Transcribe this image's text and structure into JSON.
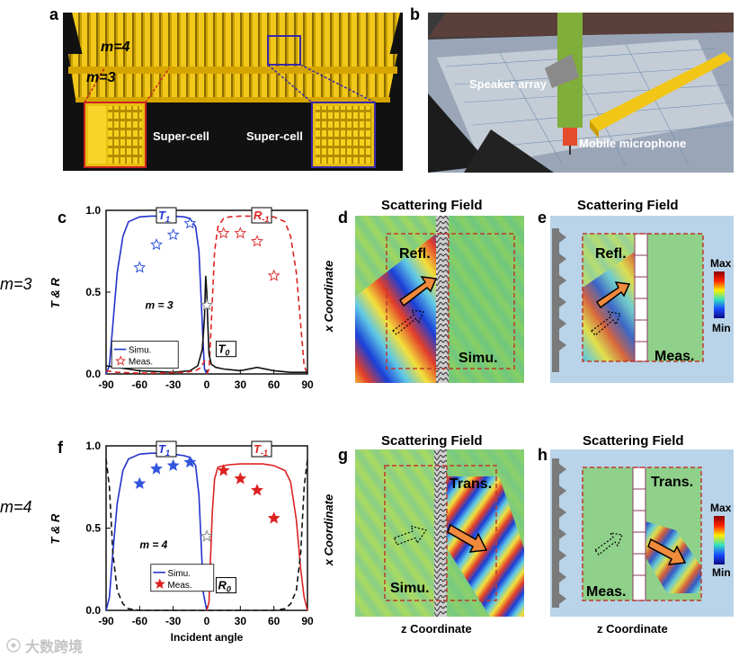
{
  "panels": {
    "a": {
      "letter": "a",
      "m4": "m=4",
      "m3": "m=3",
      "supercell_left": "Super-cell",
      "supercell_right": "Super-cell"
    },
    "b": {
      "letter": "b",
      "speaker": "Speaker array",
      "microphone": "Mobile  microphone"
    },
    "c": {
      "letter": "c"
    },
    "d": {
      "letter": "d",
      "title": "Scattering Field",
      "refl": "Refl.",
      "simu": "Simu.",
      "ylabel": "x Coordinate"
    },
    "e": {
      "letter": "e",
      "title": "Scattering Field",
      "refl": "Refl.",
      "meas": "Meas.",
      "cb_max": "Max",
      "cb_min": "Min"
    },
    "f": {
      "letter": "f"
    },
    "g": {
      "letter": "g",
      "title": "Scattering Field",
      "trans": "Trans.",
      "simu": "Simu.",
      "ylabel": "x Coordinate",
      "xlabel": "z Coordinate"
    },
    "h": {
      "letter": "h",
      "title": "Scattering Field",
      "trans": "Trans.",
      "meas": "Meas.",
      "cb_max": "Max",
      "cb_min": "Min",
      "xlabel": "z Coordinate"
    }
  },
  "row_labels": {
    "m3": "m=3",
    "m4": "m=4"
  },
  "watermark": "大数跨境",
  "chart_data": [
    {
      "id": "c",
      "type": "line",
      "xlabel": "",
      "ylabel": "T & R",
      "xlim": [
        -90,
        90
      ],
      "ylim": [
        0,
        1
      ],
      "xticks": [
        -90,
        -60,
        -30,
        0,
        30,
        60,
        90
      ],
      "yticks": [
        "0.0",
        "0.5",
        "1.0"
      ],
      "annotation_m": "m = 3",
      "curve_labels": {
        "T1": "T1",
        "Rm1": "R-1",
        "T0": "T0"
      },
      "legend": {
        "simu": "Simu.",
        "meas": "Meas."
      },
      "series": [
        {
          "name": "T1 (Simu.)",
          "style": "solid",
          "color": "#2233cc",
          "x": [
            -90,
            -87,
            -84,
            -80,
            -75,
            -70,
            -60,
            -50,
            -40,
            -30,
            -20,
            -15,
            -10,
            -7,
            -5,
            -3,
            -2,
            0
          ],
          "y": [
            0,
            0.05,
            0.3,
            0.62,
            0.84,
            0.93,
            0.96,
            0.965,
            0.965,
            0.965,
            0.96,
            0.95,
            0.9,
            0.75,
            0.45,
            0.15,
            0.03,
            0
          ]
        },
        {
          "name": "R-1 (Simu.)",
          "style": "dashed",
          "color": "#dd2222",
          "x": [
            0,
            2,
            3,
            5,
            7,
            10,
            15,
            20,
            30,
            40,
            50,
            60,
            70,
            75,
            80,
            84,
            87,
            90
          ],
          "y": [
            0,
            0.03,
            0.15,
            0.45,
            0.75,
            0.9,
            0.95,
            0.96,
            0.965,
            0.965,
            0.965,
            0.96,
            0.93,
            0.84,
            0.62,
            0.3,
            0.05,
            0
          ]
        },
        {
          "name": "T0 (Simu.)",
          "style": "solid",
          "color": "#111111",
          "x": [
            -90,
            -60,
            -30,
            -15,
            -8,
            -4,
            -2,
            -1,
            0,
            1,
            2,
            4,
            8,
            15,
            30,
            45,
            60,
            75,
            90
          ],
          "y": [
            0.05,
            0.02,
            0.01,
            0.02,
            0.05,
            0.15,
            0.35,
            0.6,
            0.5,
            0.3,
            0.12,
            0.06,
            0.04,
            0.03,
            0.02,
            0.04,
            0.02,
            0.01,
            0.01
          ]
        },
        {
          "name": "R-1 (Simu. low)",
          "style": "dashed",
          "color": "#dd2222",
          "x": [
            -90,
            -80,
            -60,
            -40,
            -20,
            -10,
            -5,
            -2,
            0
          ],
          "y": [
            0.02,
            0.01,
            0.005,
            0.005,
            0.01,
            0.02,
            0.04,
            0.08,
            0.1
          ]
        }
      ],
      "measured": [
        {
          "name": "T1 (Meas.)",
          "color": "#3355dd",
          "x": [
            -60,
            -45,
            -30,
            -15
          ],
          "y": [
            0.65,
            0.79,
            0.85,
            0.92
          ]
        },
        {
          "name": "R-1 (Meas.)",
          "color": "#dd3333",
          "x": [
            15,
            30,
            45,
            60
          ],
          "y": [
            0.86,
            0.86,
            0.81,
            0.6
          ]
        },
        {
          "name": "T0 (Meas.)",
          "color": "#888888",
          "x": [
            0
          ],
          "y": [
            0.42
          ]
        }
      ]
    },
    {
      "id": "f",
      "type": "line",
      "xlabel": "Incident angle",
      "ylabel": "T & R",
      "xlim": [
        -90,
        90
      ],
      "ylim": [
        0,
        1
      ],
      "xticks": [
        -90,
        -60,
        -30,
        0,
        30,
        60,
        90
      ],
      "yticks": [
        "0.0",
        "0.5",
        "1.0"
      ],
      "annotation_m": "m = 4",
      "curve_labels": {
        "T1": "T1",
        "Tm1": "T-1",
        "R0": "R0"
      },
      "legend": {
        "simu": "Simu.",
        "meas": "Meas."
      },
      "series": [
        {
          "name": "T1 (Simu.)",
          "style": "solid",
          "color": "#2233cc",
          "x": [
            -90,
            -87,
            -84,
            -80,
            -75,
            -70,
            -60,
            -50,
            -40,
            -30,
            -20,
            -15,
            -10,
            -7,
            -5,
            -3,
            0
          ],
          "y": [
            0,
            0.08,
            0.35,
            0.65,
            0.85,
            0.92,
            0.95,
            0.955,
            0.955,
            0.95,
            0.94,
            0.93,
            0.88,
            0.7,
            0.4,
            0.1,
            0
          ]
        },
        {
          "name": "T-1 (Simu.)",
          "style": "solid",
          "color": "#dd2222",
          "x": [
            0,
            2,
            3,
            5,
            7,
            10,
            15,
            20,
            30,
            40,
            50,
            60,
            70,
            75,
            80,
            84,
            87,
            90
          ],
          "y": [
            0,
            0.05,
            0.25,
            0.6,
            0.8,
            0.87,
            0.88,
            0.885,
            0.89,
            0.89,
            0.89,
            0.88,
            0.85,
            0.78,
            0.55,
            0.25,
            0.08,
            0
          ]
        },
        {
          "name": "R0 (Simu.)",
          "style": "dashed",
          "color": "#111111",
          "x": [
            -90,
            -87,
            -84,
            -80,
            -75,
            -70,
            -60,
            -40,
            -20,
            0,
            20,
            40,
            60,
            70,
            75,
            80,
            84,
            87,
            90
          ],
          "y": [
            0.92,
            0.75,
            0.35,
            0.12,
            0.04,
            0.01,
            0,
            0,
            0,
            0,
            0,
            0,
            0,
            0.01,
            0.04,
            0.12,
            0.35,
            0.75,
            0.92
          ]
        }
      ],
      "measured": [
        {
          "name": "T1 (Meas.)",
          "color": "#3355dd",
          "x": [
            -60,
            -45,
            -30,
            -15
          ],
          "y": [
            0.77,
            0.86,
            0.88,
            0.9
          ]
        },
        {
          "name": "T-1 (Meas.)",
          "color": "#dd2222",
          "x": [
            15,
            30,
            45,
            60
          ],
          "y": [
            0.85,
            0.8,
            0.73,
            0.56
          ]
        },
        {
          "name": "R0 (Meas.)",
          "color": "#888888",
          "x": [
            0
          ],
          "y": [
            0.45
          ]
        }
      ]
    }
  ]
}
